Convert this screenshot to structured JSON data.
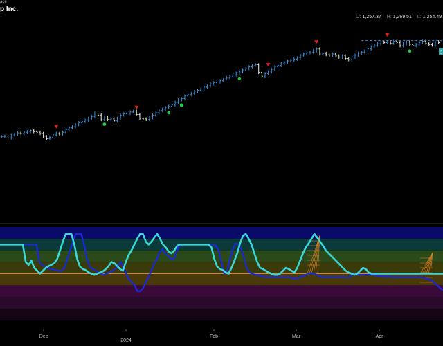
{
  "header": {
    "exchange_fragment": "ace",
    "title_fragment": "p Inc.",
    "ohl": [
      {
        "key": "O:",
        "value": "1,257.37"
      },
      {
        "key": "H:",
        "value": "1,269.51"
      },
      {
        "key": "L:",
        "value": "1,254.49"
      }
    ]
  },
  "colors": {
    "bar_up": "#3a8fd8",
    "bar_down": "#f0f0f0",
    "bar_pale": "#cfe8a8",
    "signal_down": "#e02020",
    "signal_up": "#22cc44",
    "osc_fast": "#3ad8d8",
    "osc_slow": "#1a2ad0",
    "midline": "#e08020",
    "last_price_tag": "#2aa8a8"
  },
  "chart_data": [
    {
      "type": "ohlc",
      "x_axis": {
        "labels": [
          "Dec",
          "2024",
          "Feb",
          "Mar",
          "Apr"
        ]
      },
      "grid": false,
      "series": [
        {
          "values": [
            1113,
            1114,
            1111,
            1116,
            1117,
            1119,
            1118,
            1120,
            1121,
            1123,
            1121,
            1120,
            1118,
            1113,
            1110,
            1112,
            1116,
            1118,
            1117,
            1120,
            1124,
            1127,
            1129,
            1132,
            1135,
            1137,
            1139,
            1142,
            1145,
            1150,
            1147,
            1140,
            1143,
            1140,
            1141,
            1138,
            1142,
            1147,
            1149,
            1150,
            1152,
            1153,
            1148,
            1142,
            1141,
            1140,
            1143,
            1147,
            1151,
            1154,
            1156,
            1159,
            1161,
            1163,
            1167,
            1171,
            1173,
            1177,
            1179,
            1181,
            1184,
            1186,
            1188,
            1191,
            1193,
            1196,
            1198,
            1199,
            1201,
            1204,
            1206,
            1208,
            1210,
            1213,
            1215,
            1218,
            1220,
            1223,
            1225,
            1226,
            1214,
            1208,
            1212,
            1215,
            1219,
            1223,
            1225,
            1228,
            1230,
            1232,
            1233,
            1235,
            1237,
            1241,
            1243,
            1245,
            1246,
            1248,
            1251,
            1243,
            1244,
            1242,
            1241,
            1243,
            1240,
            1238,
            1240,
            1236,
            1234,
            1238,
            1241,
            1244,
            1246,
            1248,
            1251,
            1254,
            1257,
            1259,
            1262,
            1261,
            1262,
            1260,
            1263,
            1261,
            1256,
            1259,
            1262,
            1258,
            1256,
            1258,
            1261,
            1263,
            1260,
            1258,
            1257,
            1262,
            1261
          ],
          "up_color_key": "bar_up"
        }
      ],
      "signals": {
        "sell_markers_at_bar": [
          17,
          42,
          83,
          98,
          120,
          141,
          177
        ],
        "buy_markers_at_bar": [
          32,
          52,
          56,
          74,
          127,
          159,
          168,
          193,
          200
        ]
      },
      "last_price_label": "C"
    },
    {
      "type": "line",
      "ylim": [
        -60,
        100
      ],
      "bands": [
        {
          "from": 80,
          "to": 100,
          "color": "#0a0a6a"
        },
        {
          "from": 60,
          "to": 80,
          "color": "#0a3a3a"
        },
        {
          "from": 40,
          "to": 60,
          "color": "#2a4a1a"
        },
        {
          "from": 20,
          "to": 40,
          "color": "#3a3a0a"
        },
        {
          "from": 0,
          "to": 20,
          "color": "#4a3a0a"
        },
        {
          "from": -20,
          "to": 0,
          "color": "#3a0a3a"
        },
        {
          "from": -40,
          "to": -20,
          "color": "#2a0a2a"
        },
        {
          "from": -60,
          "to": -40,
          "color": "#150515"
        }
      ],
      "midline": 20,
      "series": [
        {
          "color_key": "osc_slow",
          "values": [
            70,
            70,
            70,
            70,
            70,
            70,
            70,
            70,
            70,
            70,
            70,
            70,
            70,
            70,
            40,
            35,
            33,
            30,
            28,
            27,
            26,
            25,
            25,
            30,
            45,
            60,
            75,
            88,
            88,
            88,
            70,
            45,
            32,
            28,
            26,
            22,
            20,
            18,
            20,
            22,
            24,
            28,
            33,
            40,
            30,
            20,
            10,
            5,
            0,
            -10,
            -10,
            -5,
            5,
            15,
            25,
            38,
            45,
            58,
            62,
            55,
            50,
            45,
            45,
            58,
            68,
            70,
            70,
            70,
            70,
            70,
            70,
            70,
            70,
            70,
            70,
            70,
            70,
            68,
            60,
            40,
            20,
            25,
            45,
            62,
            72,
            70,
            62,
            48,
            30,
            22,
            20,
            18,
            18,
            16,
            15,
            14,
            14,
            14,
            14,
            14,
            14,
            14,
            14,
            14,
            13,
            12,
            12,
            14,
            16,
            18,
            20,
            21,
            20,
            18,
            16,
            14,
            14,
            14,
            14,
            14,
            14,
            14,
            14,
            14,
            14,
            15,
            20,
            18,
            18,
            18,
            18,
            18,
            18,
            18,
            17,
            16,
            16,
            15,
            15,
            15,
            14,
            14,
            14,
            14,
            14,
            14,
            14,
            14,
            14,
            14,
            14,
            13,
            12,
            10,
            8,
            4,
            0,
            -5,
            -8
          ]
        },
        {
          "color_key": "osc_fast",
          "values": [
            70,
            70,
            70,
            70,
            70,
            70,
            70,
            70,
            70,
            40,
            35,
            42,
            30,
            25,
            20,
            25,
            30,
            33,
            35,
            38,
            45,
            60,
            75,
            88,
            88,
            88,
            70,
            45,
            32,
            28,
            26,
            22,
            20,
            18,
            20,
            22,
            24,
            28,
            33,
            40,
            38,
            33,
            28,
            25,
            40,
            52,
            60,
            70,
            80,
            88,
            88,
            75,
            70,
            75,
            82,
            88,
            80,
            70,
            65,
            58,
            55,
            60,
            68,
            70,
            70,
            70,
            70,
            70,
            70,
            70,
            70,
            70,
            70,
            70,
            65,
            45,
            32,
            28,
            26,
            22,
            20,
            30,
            42,
            55,
            72,
            85,
            88,
            80,
            70,
            55,
            40,
            30,
            28,
            25,
            22,
            20,
            18,
            18,
            20,
            25,
            30,
            28,
            25,
            22,
            30,
            42,
            55,
            65,
            72,
            80,
            88,
            82,
            75,
            68,
            60,
            55,
            50,
            45,
            40,
            35,
            30,
            25,
            22,
            20,
            18,
            20,
            25,
            30,
            28,
            22,
            20,
            20,
            20,
            20,
            20,
            20,
            20,
            20,
            20,
            20,
            20,
            20,
            20,
            20,
            20,
            20,
            20,
            20,
            20,
            20,
            20,
            20,
            20,
            20,
            20,
            20
          ]
        }
      ]
    }
  ]
}
